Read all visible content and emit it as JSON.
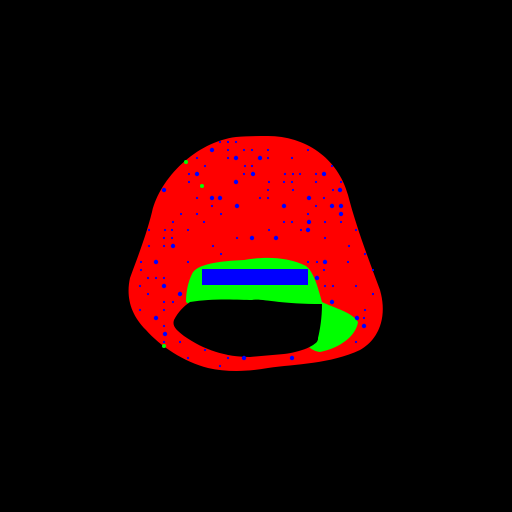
{
  "image": {
    "background_color": "#000000",
    "regions": [
      {
        "name": "outer-shell-region",
        "color": "#ff0000"
      },
      {
        "name": "inner-band-region",
        "color": "#00ff00"
      },
      {
        "name": "bar-region",
        "color": "#0000ff"
      },
      {
        "name": "cavity-region",
        "color": "#000000"
      }
    ],
    "speckle_colors": {
      "primary": "#0000ff",
      "secondary": "#00ff00"
    }
  }
}
